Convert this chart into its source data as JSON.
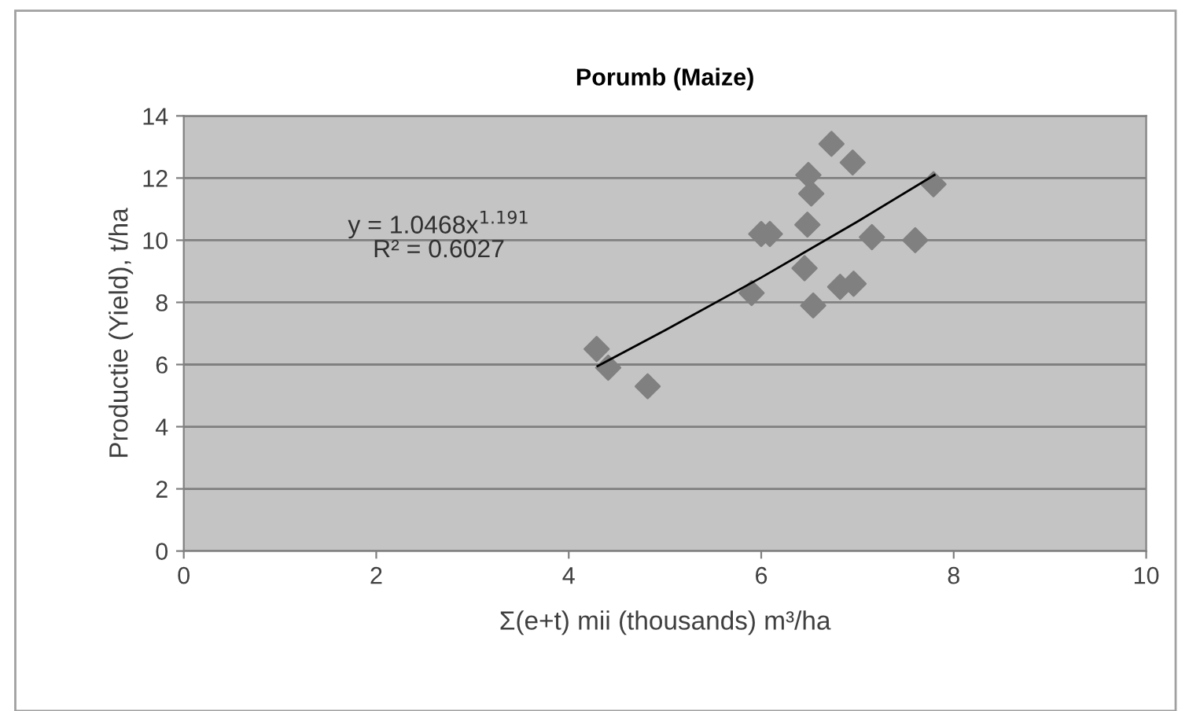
{
  "chart_data": {
    "type": "scatter",
    "title": "Porumb (Maize)",
    "xlabel": "Σ(e+t) mii (thousands) m³/ha",
    "ylabel": "Productie (Yield), t/ha",
    "xlim": [
      0,
      10
    ],
    "xticks": [
      0,
      2,
      4,
      6,
      8,
      10
    ],
    "ylim": [
      0,
      14
    ],
    "yticks": [
      0,
      2,
      4,
      6,
      8,
      10,
      12,
      14
    ],
    "grid": "y",
    "marker": "diamond",
    "legend": false,
    "annotations": [
      "y = 1.0468x$^{1.191}$",
      "R² = 0.6027"
    ],
    "series": [
      {
        "color": "#808080",
        "x": [
          4.29,
          4.41,
          4.82,
          5.9,
          6.0,
          6.09,
          6.45,
          6.48,
          6.49,
          6.52,
          6.54,
          6.73,
          6.82,
          6.95,
          6.96,
          7.15,
          7.6,
          7.79
        ],
        "values": [
          6.5,
          5.9,
          5.3,
          8.3,
          10.2,
          10.2,
          9.1,
          10.5,
          12.1,
          11.5,
          7.9,
          13.1,
          8.5,
          12.5,
          8.6,
          10.1,
          10.0,
          11.8
        ]
      },
      {
        "type": "line",
        "color": "#000000",
        "marker": "none",
        "line_style": "solid",
        "x": [
          4.3,
          5,
          6,
          7,
          7.8
        ],
        "values": [
          5.95,
          7.1,
          8.8,
          10.6,
          12.1
        ]
      }
    ]
  }
}
